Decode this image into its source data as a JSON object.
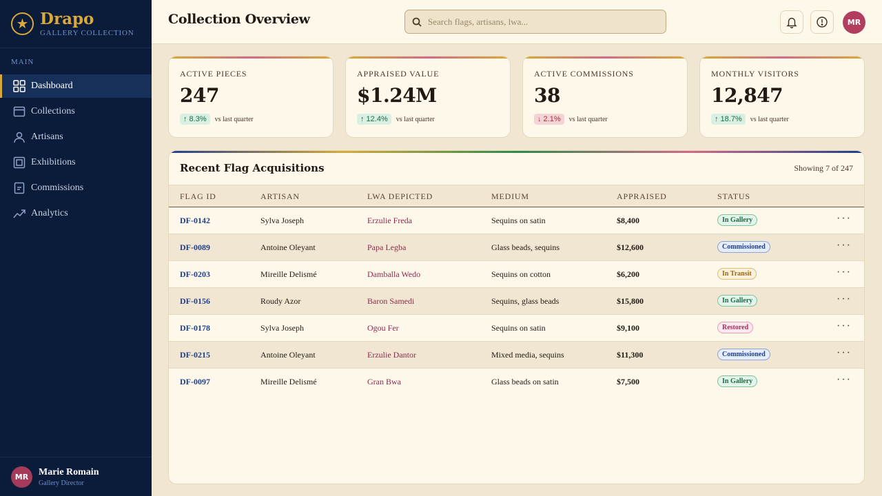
{
  "brand": {
    "name": "Drapo",
    "subtitle": "GALLERY COLLECTION",
    "logo_icon": "star-icon"
  },
  "sidebar": {
    "section_label": "MAIN",
    "items": [
      {
        "label": "Dashboard",
        "icon": "grid-icon",
        "active": true
      },
      {
        "label": "Collections",
        "icon": "folder-icon"
      },
      {
        "label": "Artisans",
        "icon": "user-icon"
      },
      {
        "label": "Exhibitions",
        "icon": "frame-icon"
      },
      {
        "label": "Commissions",
        "icon": "document-icon"
      },
      {
        "label": "Analytics",
        "icon": "trend-icon"
      }
    ]
  },
  "user": {
    "initials": "MR",
    "name": "Marie Romain",
    "role": "Gallery Director"
  },
  "header": {
    "title": "Collection Overview",
    "search_placeholder": "Search flags, artisans, lwa...",
    "avatar_initials": "MR"
  },
  "stats": [
    {
      "label": "ACTIVE PIECES",
      "value": "247",
      "delta": "↑ 8.3%",
      "direction": "up",
      "note": "vs last quarter"
    },
    {
      "label": "APPRAISED VALUE",
      "value": "$1.24M",
      "delta": "↑ 12.4%",
      "direction": "up",
      "note": "vs last quarter"
    },
    {
      "label": "ACTIVE COMMISSIONS",
      "value": "38",
      "delta": "↓ 2.1%",
      "direction": "down",
      "note": "vs last quarter"
    },
    {
      "label": "MONTHLY VISITORS",
      "value": "12,847",
      "delta": "↑ 18.7%",
      "direction": "up",
      "note": "vs last quarter"
    }
  ],
  "table": {
    "title": "Recent Flag Acquisitions",
    "count": "Showing 7 of 247",
    "columns": [
      "FLAG ID",
      "ARTISAN",
      "LWA DEPICTED",
      "MEDIUM",
      "APPRAISED",
      "STATUS"
    ],
    "rows": [
      {
        "id": "DF-0142",
        "artisan": "Sylva Joseph",
        "lwa": "Erzulie Freda",
        "medium": "Sequins on satin",
        "appraised": "$8,400",
        "status": "In Gallery",
        "status_type": "gallery"
      },
      {
        "id": "DF-0089",
        "artisan": "Antoine Oleyant",
        "lwa": "Papa Legba",
        "medium": "Glass beads, sequins",
        "appraised": "$12,600",
        "status": "Commissioned",
        "status_type": "commissioned"
      },
      {
        "id": "DF-0203",
        "artisan": "Mireille Delismé",
        "lwa": "Damballa Wedo",
        "medium": "Sequins on cotton",
        "appraised": "$6,200",
        "status": "In Transit",
        "status_type": "transit"
      },
      {
        "id": "DF-0156",
        "artisan": "Roudy Azor",
        "lwa": "Baron Samedi",
        "medium": "Sequins, glass beads",
        "appraised": "$15,800",
        "status": "In Gallery",
        "status_type": "gallery"
      },
      {
        "id": "DF-0178",
        "artisan": "Sylva Joseph",
        "lwa": "Ogou Fer",
        "medium": "Sequins on satin",
        "appraised": "$9,100",
        "status": "Restored",
        "status_type": "restored"
      },
      {
        "id": "DF-0215",
        "artisan": "Antoine Oleyant",
        "lwa": "Erzulie Dantor",
        "medium": "Mixed media, sequins",
        "appraised": "$11,300",
        "status": "Commissioned",
        "status_type": "commissioned"
      },
      {
        "id": "DF-0097",
        "artisan": "Mireille Delismé",
        "lwa": "Gran Bwa",
        "medium": "Glass beads on satin",
        "appraised": "$7,500",
        "status": "In Gallery",
        "status_type": "gallery"
      }
    ]
  }
}
